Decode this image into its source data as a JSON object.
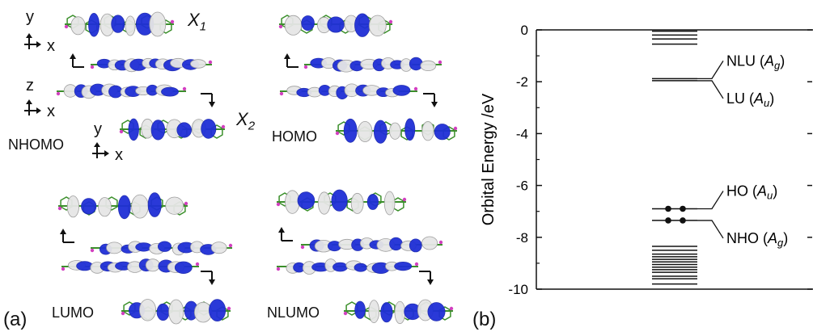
{
  "panel_a": {
    "tag": "(a)",
    "x1_label": "X",
    "x1_sub": "1",
    "x2_label": "X",
    "x2_sub": "2",
    "axes": [
      {
        "v": "y",
        "h": "x"
      },
      {
        "v": "z",
        "h": "x"
      },
      {
        "v": "y",
        "h": "x"
      }
    ],
    "orbitals": [
      "NHOMO",
      "HOMO",
      "LUMO",
      "NLUMO"
    ]
  },
  "panel_b": {
    "tag": "(b)"
  },
  "chart_data": {
    "type": "energy-level-diagram",
    "ylabel": "Orbital Energy /eV",
    "ylim": [
      -10,
      0
    ],
    "yticks": [
      0,
      -2,
      -4,
      -6,
      -8,
      -10
    ],
    "occupied_levels": [
      -7.35,
      -6.9
    ],
    "unoccupied_levels": [
      -1.96,
      -1.88
    ],
    "upper_unoccupied_levels": [
      -0.05,
      -0.2,
      -0.35,
      -0.55
    ],
    "lower_occupied_levels": [
      -8.35,
      -8.5,
      -8.65,
      -8.75,
      -8.85,
      -8.95,
      -9.05,
      -9.15,
      -9.25,
      -9.35,
      -9.5,
      -9.6,
      -9.8
    ],
    "annotations": [
      {
        "name": "NLU",
        "sym": "A",
        "sub": "g",
        "energy": -1.88
      },
      {
        "name": "LU",
        "sym": "A",
        "sub": "u",
        "energy": -1.96
      },
      {
        "name": "HO",
        "sym": "A",
        "sub": "u",
        "energy": -6.9
      },
      {
        "name": "NHO",
        "sym": "A",
        "sub": "g",
        "energy": -7.35
      }
    ],
    "electrons_per_level": 2
  }
}
